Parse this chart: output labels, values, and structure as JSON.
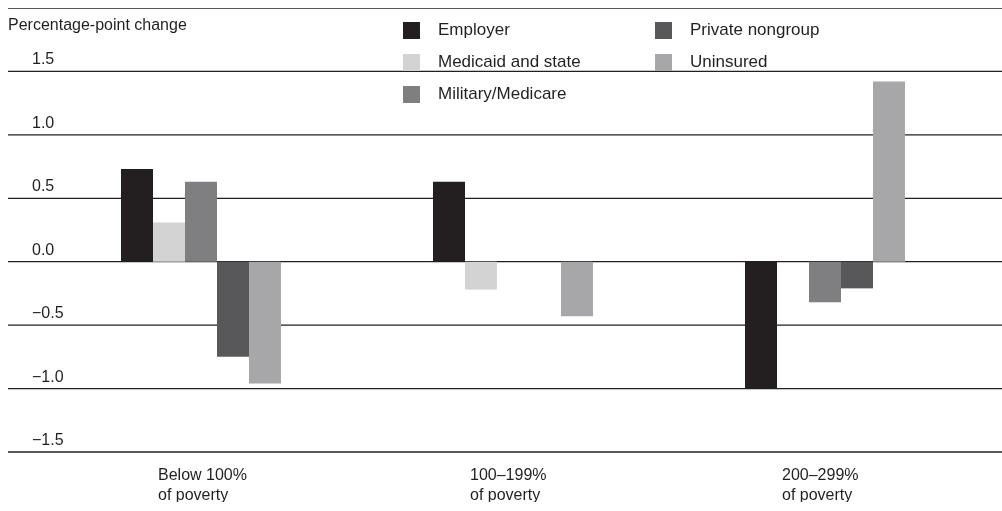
{
  "chart_data": {
    "type": "bar",
    "ylabel": "Percentage-point change",
    "categories": [
      "Below 100% of poverty",
      "100–199% of poverty",
      "200–299% of poverty"
    ],
    "series": [
      {
        "name": "Employer",
        "color": "#231f20",
        "values": [
          0.73,
          0.63,
          -1.0
        ]
      },
      {
        "name": "Medicaid and state",
        "color": "#d3d3d4",
        "values": [
          0.31,
          -0.22,
          0
        ]
      },
      {
        "name": "Military/Medicare",
        "color": "#7f7f82",
        "values": [
          0.63,
          0,
          -0.32
        ]
      },
      {
        "name": "Private nongroup",
        "color": "#58585a",
        "values": [
          -0.75,
          0,
          -0.21
        ]
      },
      {
        "name": "Uninsured",
        "color": "#a7a7a9",
        "values": [
          -0.96,
          -0.43,
          1.42
        ]
      }
    ],
    "ylim": [
      -1.5,
      2.0
    ],
    "yticks": [
      {
        "value": -1.5,
        "label": "−1.5"
      },
      {
        "value": -1,
        "label": "−1.0"
      },
      {
        "value": -0.5,
        "label": "−0.5"
      },
      {
        "value": 0,
        "label": "0.0"
      },
      {
        "value": 0.5,
        "label": "0.5"
      },
      {
        "value": 1,
        "label": "1.0"
      },
      {
        "value": 1.5,
        "label": "1.5"
      },
      {
        "value": 2,
        "label": null
      }
    ],
    "grid": "y",
    "legend": "top"
  }
}
